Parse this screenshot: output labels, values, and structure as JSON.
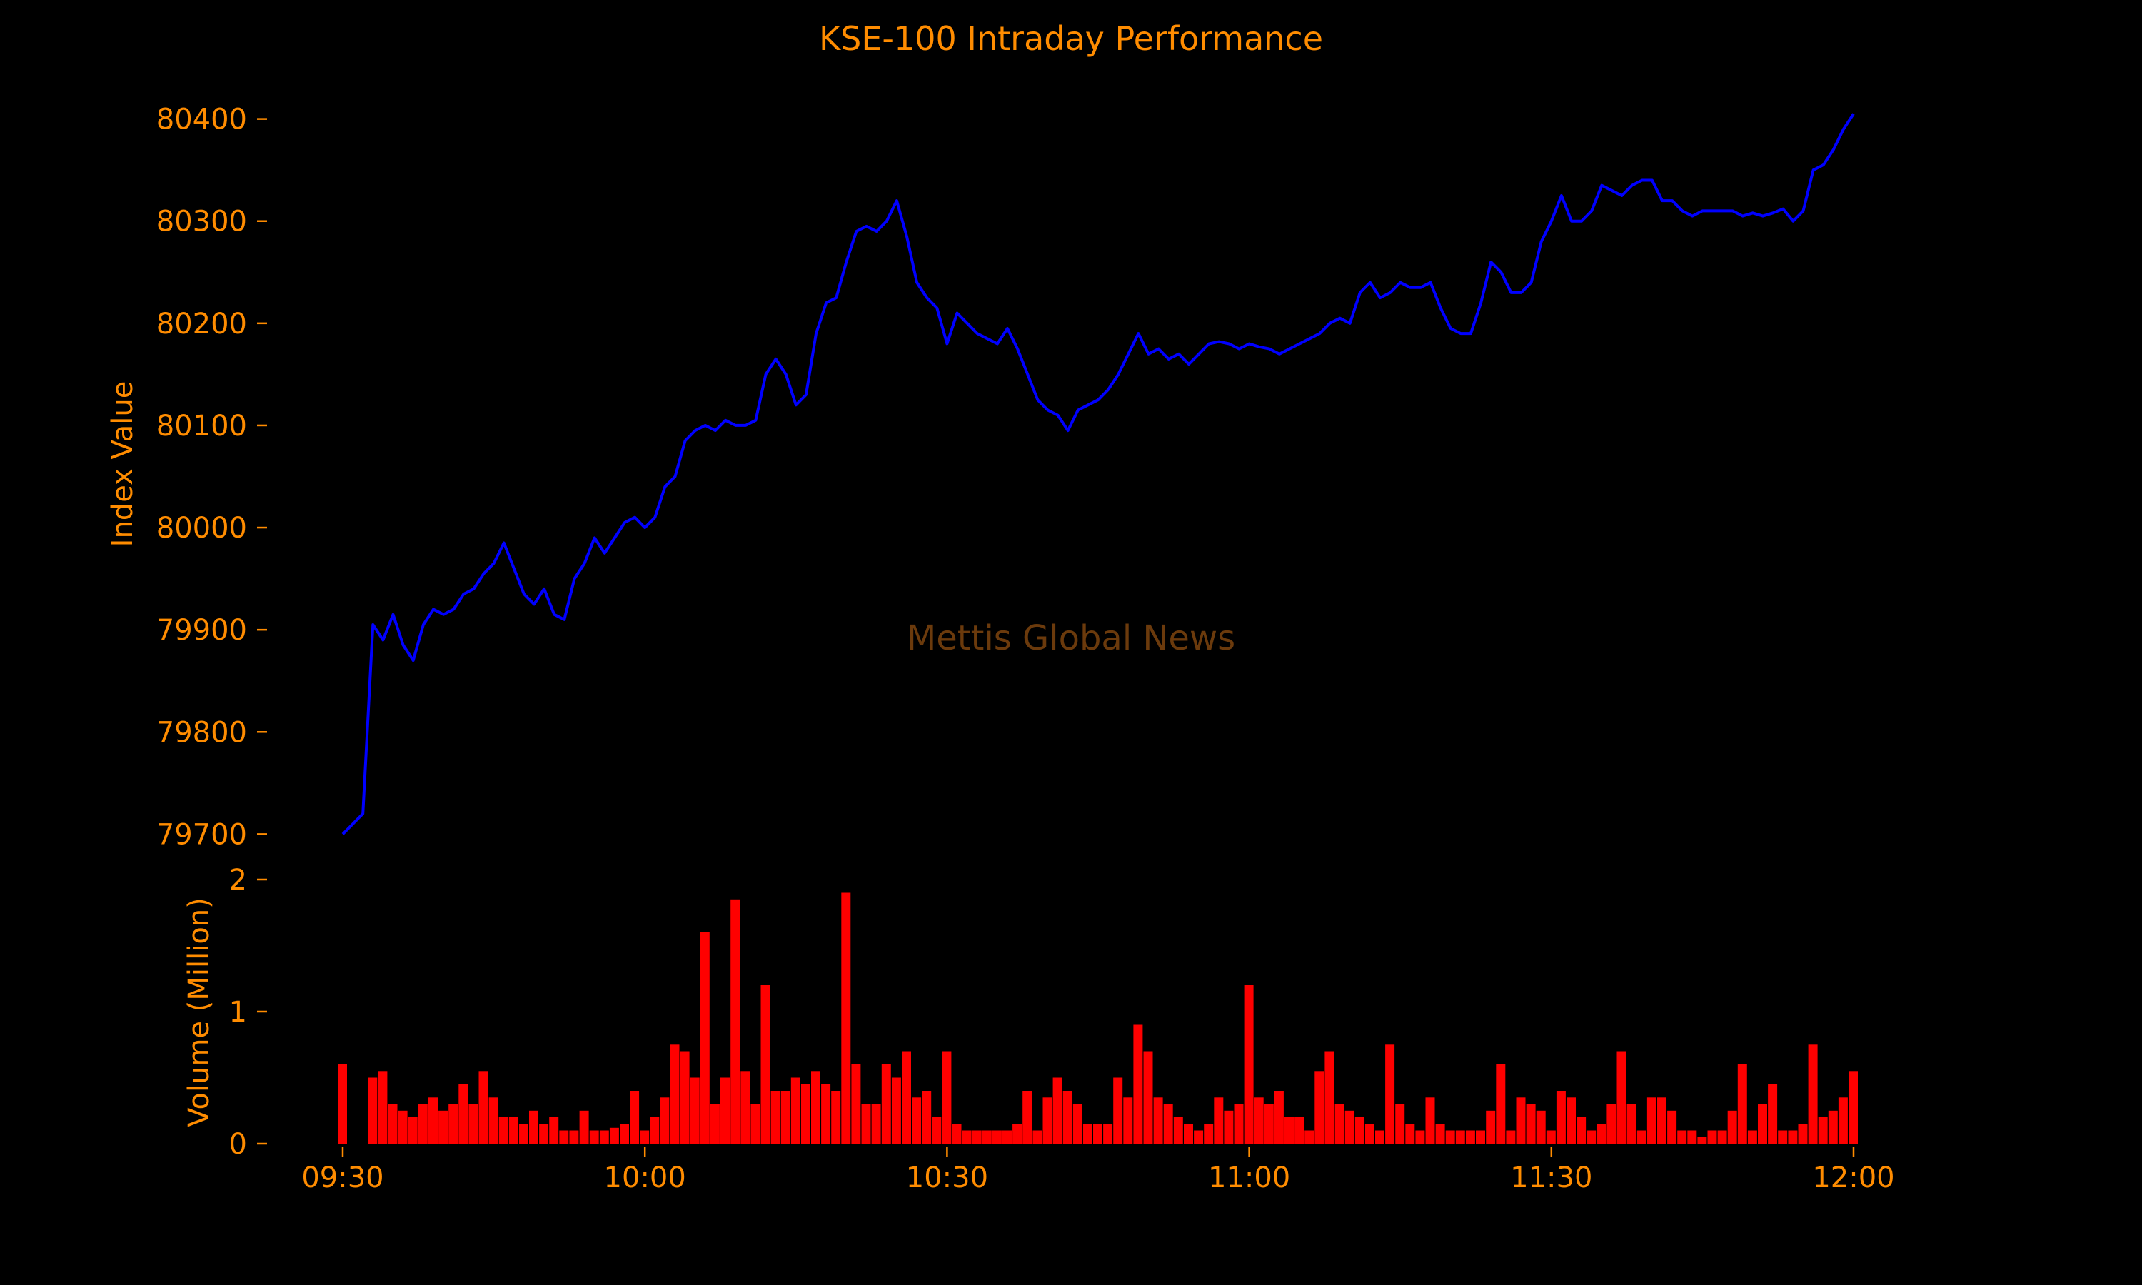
{
  "colors": {
    "background": "#000000",
    "text": "#ff8c00",
    "price_line": "#0000ff",
    "volume_bars": "#ff0000",
    "watermark": "#6b3a0c"
  },
  "watermark": "Mettis Global News",
  "chart_data": [
    {
      "type": "line",
      "title": "KSE-100 Intraday Performance",
      "xlabel": "",
      "ylabel": "Index Value",
      "xlim": [
        "09:30",
        "12:00"
      ],
      "ylim": [
        79680,
        80420
      ],
      "yticks": [
        79700,
        79800,
        79900,
        80000,
        80100,
        80200,
        80300,
        80400
      ],
      "grid": false,
      "series": [
        {
          "x": [
            "09:30",
            "09:31",
            "09:32",
            "09:33",
            "09:34",
            "09:35",
            "09:36",
            "09:37",
            "09:38",
            "09:39",
            "09:40",
            "09:41",
            "09:42",
            "09:43",
            "09:44",
            "09:45",
            "09:46",
            "09:47",
            "09:48",
            "09:49",
            "09:50",
            "09:51",
            "09:52",
            "09:53",
            "09:54",
            "09:55",
            "09:56",
            "09:57",
            "09:58",
            "09:59",
            "10:00",
            "10:01",
            "10:02",
            "10:03",
            "10:04",
            "10:05",
            "10:06",
            "10:07",
            "10:08",
            "10:09",
            "10:10",
            "10:11",
            "10:12",
            "10:13",
            "10:14",
            "10:15",
            "10:16",
            "10:17",
            "10:18",
            "10:19",
            "10:20",
            "10:21",
            "10:22",
            "10:23",
            "10:24",
            "10:25",
            "10:26",
            "10:27",
            "10:28",
            "10:29",
            "10:30",
            "10:31",
            "10:32",
            "10:33",
            "10:34",
            "10:35",
            "10:36",
            "10:37",
            "10:38",
            "10:39",
            "10:40",
            "10:41",
            "10:42",
            "10:43",
            "10:44",
            "10:45",
            "10:46",
            "10:47",
            "10:48",
            "10:49",
            "10:50",
            "10:51",
            "10:52",
            "10:53",
            "10:54",
            "10:55",
            "10:56",
            "10:57",
            "10:58",
            "10:59",
            "11:00",
            "11:01",
            "11:02",
            "11:03",
            "11:04",
            "11:05",
            "11:06",
            "11:07",
            "11:08",
            "11:09",
            "11:10",
            "11:11",
            "11:12",
            "11:13",
            "11:14",
            "11:15",
            "11:16",
            "11:17",
            "11:18",
            "11:19",
            "11:20",
            "11:21",
            "11:22",
            "11:23",
            "11:24",
            "11:25",
            "11:26",
            "11:27",
            "11:28",
            "11:29",
            "11:30",
            "11:31",
            "11:32",
            "11:33",
            "11:34",
            "11:35",
            "11:36",
            "11:37",
            "11:38",
            "11:39",
            "11:40",
            "11:41",
            "11:42",
            "11:43",
            "11:44",
            "11:45",
            "11:46",
            "11:47",
            "11:48",
            "11:49",
            "11:50",
            "11:51",
            "11:52",
            "11:53",
            "11:54",
            "11:55",
            "11:56",
            "11:57",
            "11:58",
            "11:59",
            "12:00"
          ],
          "values": [
            79700,
            79710,
            79720,
            79905,
            79890,
            79915,
            79885,
            79870,
            79905,
            79920,
            79915,
            79920,
            79935,
            79940,
            79955,
            79965,
            79985,
            79960,
            79935,
            79925,
            79940,
            79915,
            79910,
            79950,
            79965,
            79990,
            79975,
            79990,
            80005,
            80010,
            80000,
            80010,
            80040,
            80050,
            80085,
            80095,
            80100,
            80095,
            80105,
            80100,
            80100,
            80105,
            80150,
            80165,
            80150,
            80120,
            80130,
            80190,
            80220,
            80225,
            80260,
            80290,
            80295,
            80290,
            80300,
            80320,
            80285,
            80240,
            80225,
            80215,
            80180,
            80210,
            80200,
            80190,
            80185,
            80180,
            80195,
            80175,
            80150,
            80125,
            80115,
            80110,
            80095,
            80115,
            80120,
            80125,
            80135,
            80150,
            80170,
            80190,
            80170,
            80175,
            80165,
            80170,
            80160,
            80170,
            80180,
            80182,
            80180,
            80175,
            80180,
            80177,
            80175,
            80170,
            80175,
            80180,
            80185,
            80190,
            80200,
            80205,
            80200,
            80230,
            80240,
            80225,
            80230,
            80240,
            80235,
            80235,
            80240,
            80215,
            80195,
            80190,
            80190,
            80220,
            80260,
            80250,
            80230,
            80230,
            80240,
            80280,
            80300,
            80325,
            80300,
            80300,
            80310,
            80335,
            80330,
            80325,
            80335,
            80340,
            80340,
            80320,
            80320,
            80310,
            80305,
            80310,
            80310,
            80310,
            80310,
            80305,
            80308,
            80305,
            80308,
            80312,
            80300,
            80310,
            80350,
            80355,
            80370,
            80390,
            80405
          ]
        }
      ]
    },
    {
      "type": "bar",
      "title": "",
      "xlabel": "",
      "ylabel": "Volume (Million)",
      "xlim": [
        "09:30",
        "12:00"
      ],
      "ylim": [
        0,
        2
      ],
      "yticks": [
        0,
        1,
        2
      ],
      "xticks": [
        "09:30",
        "10:00",
        "10:30",
        "11:00",
        "11:30",
        "12:00"
      ],
      "grid": false,
      "series": [
        {
          "x": [
            "09:30",
            "09:31",
            "09:32",
            "09:33",
            "09:34",
            "09:35",
            "09:36",
            "09:37",
            "09:38",
            "09:39",
            "09:40",
            "09:41",
            "09:42",
            "09:43",
            "09:44",
            "09:45",
            "09:46",
            "09:47",
            "09:48",
            "09:49",
            "09:50",
            "09:51",
            "09:52",
            "09:53",
            "09:54",
            "09:55",
            "09:56",
            "09:57",
            "09:58",
            "09:59",
            "10:00",
            "10:01",
            "10:02",
            "10:03",
            "10:04",
            "10:05",
            "10:06",
            "10:07",
            "10:08",
            "10:09",
            "10:10",
            "10:11",
            "10:12",
            "10:13",
            "10:14",
            "10:15",
            "10:16",
            "10:17",
            "10:18",
            "10:19",
            "10:20",
            "10:21",
            "10:22",
            "10:23",
            "10:24",
            "10:25",
            "10:26",
            "10:27",
            "10:28",
            "10:29",
            "10:30",
            "10:31",
            "10:32",
            "10:33",
            "10:34",
            "10:35",
            "10:36",
            "10:37",
            "10:38",
            "10:39",
            "10:40",
            "10:41",
            "10:42",
            "10:43",
            "10:44",
            "10:45",
            "10:46",
            "10:47",
            "10:48",
            "10:49",
            "10:50",
            "10:51",
            "10:52",
            "10:53",
            "10:54",
            "10:55",
            "10:56",
            "10:57",
            "10:58",
            "10:59",
            "11:00",
            "11:01",
            "11:02",
            "11:03",
            "11:04",
            "11:05",
            "11:06",
            "11:07",
            "11:08",
            "11:09",
            "11:10",
            "11:11",
            "11:12",
            "11:13",
            "11:14",
            "11:15",
            "11:16",
            "11:17",
            "11:18",
            "11:19",
            "11:20",
            "11:21",
            "11:22",
            "11:23",
            "11:24",
            "11:25",
            "11:26",
            "11:27",
            "11:28",
            "11:29",
            "11:30",
            "11:31",
            "11:32",
            "11:33",
            "11:34",
            "11:35",
            "11:36",
            "11:37",
            "11:38",
            "11:39",
            "11:40",
            "11:41",
            "11:42",
            "11:43",
            "11:44",
            "11:45",
            "11:46",
            "11:47",
            "11:48",
            "11:49",
            "11:50",
            "11:51",
            "11:52",
            "11:53",
            "11:54",
            "11:55",
            "11:56",
            "11:57",
            "11:58",
            "11:59",
            "12:00"
          ],
          "values": [
            0.6,
            0.0,
            0.0,
            0.5,
            0.55,
            0.3,
            0.25,
            0.2,
            0.3,
            0.35,
            0.25,
            0.3,
            0.45,
            0.3,
            0.55,
            0.35,
            0.2,
            0.2,
            0.15,
            0.25,
            0.15,
            0.2,
            0.1,
            0.1,
            0.25,
            0.1,
            0.1,
            0.12,
            0.15,
            0.4,
            0.1,
            0.2,
            0.35,
            0.75,
            0.7,
            0.5,
            1.6,
            0.3,
            0.5,
            1.85,
            0.55,
            0.3,
            1.2,
            0.4,
            0.4,
            0.5,
            0.45,
            0.55,
            0.45,
            0.4,
            1.9,
            0.6,
            0.3,
            0.3,
            0.6,
            0.5,
            0.7,
            0.35,
            0.4,
            0.2,
            0.7,
            0.15,
            0.1,
            0.1,
            0.1,
            0.1,
            0.1,
            0.15,
            0.4,
            0.1,
            0.35,
            0.5,
            0.4,
            0.3,
            0.15,
            0.15,
            0.15,
            0.5,
            0.35,
            0.9,
            0.7,
            0.35,
            0.3,
            0.2,
            0.15,
            0.1,
            0.15,
            0.35,
            0.25,
            0.3,
            1.2,
            0.35,
            0.3,
            0.4,
            0.2,
            0.2,
            0.1,
            0.55,
            0.7,
            0.3,
            0.25,
            0.2,
            0.15,
            0.1,
            0.75,
            0.3,
            0.15,
            0.1,
            0.35,
            0.15,
            0.1,
            0.1,
            0.1,
            0.1,
            0.25,
            0.6,
            0.1,
            0.35,
            0.3,
            0.25,
            0.1,
            0.4,
            0.35,
            0.2,
            0.1,
            0.15,
            0.3,
            0.7,
            0.3,
            0.1,
            0.35,
            0.35,
            0.25,
            0.1,
            0.1,
            0.05,
            0.1,
            0.1,
            0.25,
            0.6,
            0.1,
            0.3,
            0.45,
            0.1,
            0.1,
            0.15,
            0.75,
            0.2,
            0.25,
            0.35,
            0.55
          ]
        }
      ]
    }
  ]
}
